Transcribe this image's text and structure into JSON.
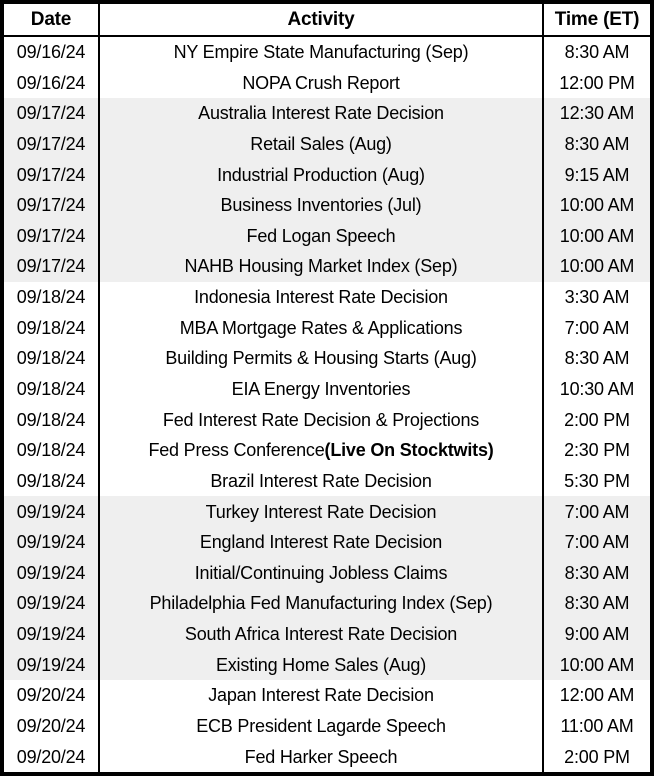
{
  "table": {
    "columns": [
      "Date",
      "Activity",
      "Time (ET)"
    ],
    "rows": [
      {
        "date": "09/16/24",
        "activity": "NY Empire State Manufacturing (Sep)",
        "time": "8:30 AM"
      },
      {
        "date": "09/16/24",
        "activity": "NOPA Crush Report",
        "time": "12:00 PM"
      },
      {
        "date": "09/17/24",
        "activity": "Australia Interest Rate Decision",
        "time": "12:30 AM"
      },
      {
        "date": "09/17/24",
        "activity": "Retail Sales (Aug)",
        "time": "8:30 AM"
      },
      {
        "date": "09/17/24",
        "activity": "Industrial Production (Aug)",
        "time": "9:15 AM"
      },
      {
        "date": "09/17/24",
        "activity": "Business Inventories (Jul)",
        "time": "10:00 AM"
      },
      {
        "date": "09/17/24",
        "activity": "Fed Logan Speech",
        "time": "10:00 AM"
      },
      {
        "date": "09/17/24",
        "activity": "NAHB Housing Market Index (Sep)",
        "time": "10:00 AM"
      },
      {
        "date": "09/18/24",
        "activity": "Indonesia Interest Rate Decision",
        "time": "3:30 AM"
      },
      {
        "date": "09/18/24",
        "activity": "MBA Mortgage Rates & Applications",
        "time": "7:00 AM"
      },
      {
        "date": "09/18/24",
        "activity": "Building Permits & Housing Starts (Aug)",
        "time": "8:30 AM"
      },
      {
        "date": "09/18/24",
        "activity": "EIA Energy Inventories",
        "time": "10:30 AM"
      },
      {
        "date": "09/18/24",
        "activity": "Fed Interest Rate Decision & Projections",
        "time": "2:00 PM"
      },
      {
        "date": "09/18/24",
        "activity": "Fed Press Conference ",
        "activity_bold": "(Live On Stocktwits)",
        "time": "2:30 PM"
      },
      {
        "date": "09/18/24",
        "activity": "Brazil Interest Rate Decision",
        "time": "5:30 PM"
      },
      {
        "date": "09/19/24",
        "activity": "Turkey Interest Rate Decision",
        "time": "7:00 AM"
      },
      {
        "date": "09/19/24",
        "activity": "England Interest Rate Decision",
        "time": "7:00 AM"
      },
      {
        "date": "09/19/24",
        "activity": "Initial/Continuing Jobless Claims",
        "time": "8:30 AM"
      },
      {
        "date": "09/19/24",
        "activity": "Philadelphia Fed Manufacturing Index (Sep)",
        "time": "8:30 AM"
      },
      {
        "date": "09/19/24",
        "activity": "South Africa Interest Rate Decision",
        "time": "9:00 AM"
      },
      {
        "date": "09/19/24",
        "activity": "Existing Home Sales (Aug)",
        "time": "10:00 AM"
      },
      {
        "date": "09/20/24",
        "activity": "Japan Interest Rate Decision",
        "time": "12:00 AM"
      },
      {
        "date": "09/20/24",
        "activity": "ECB President Lagarde Speech",
        "time": "11:00 AM"
      },
      {
        "date": "09/20/24",
        "activity": "Fed Harker Speech",
        "time": "2:00 PM"
      }
    ],
    "colors": {
      "border": "#000000",
      "text": "#000000",
      "row_bg": "#ffffff",
      "shaded_row_bg": "#efefef"
    }
  }
}
